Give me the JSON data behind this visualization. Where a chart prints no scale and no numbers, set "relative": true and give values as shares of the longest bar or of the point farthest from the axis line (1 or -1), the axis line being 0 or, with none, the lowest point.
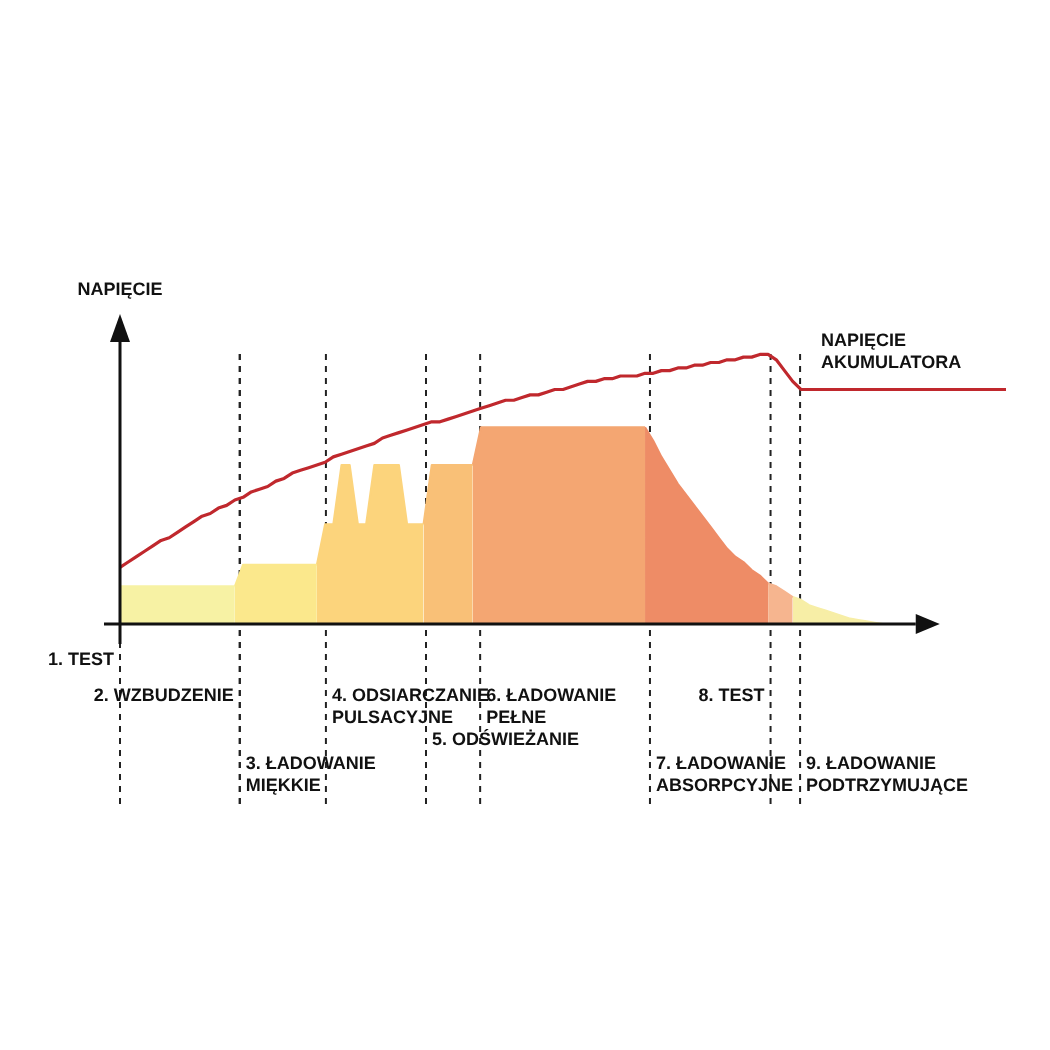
{
  "chart_data": {
    "type": "area",
    "ylabel": "NAPIĘCIE",
    "relative": true,
    "tick_labels": false,
    "marker": "none",
    "categories": [
      null,
      null,
      null,
      null,
      null,
      null,
      null,
      null,
      null,
      null,
      null,
      null,
      null,
      null,
      null,
      null,
      null,
      null,
      null,
      null,
      null,
      null,
      null,
      null,
      null,
      null,
      null,
      null,
      null,
      null,
      null,
      null,
      null,
      null,
      null,
      null,
      null,
      null,
      null,
      null,
      null,
      null,
      null,
      null,
      null,
      null,
      null,
      null,
      null,
      null,
      null,
      null,
      null,
      null,
      null,
      null,
      null,
      null,
      null,
      null,
      null,
      null,
      null,
      null,
      null,
      null,
      null,
      null,
      null,
      null,
      null,
      null,
      null,
      null,
      null,
      null,
      null,
      null,
      null,
      null,
      null,
      null,
      null,
      null,
      null,
      null,
      null,
      null,
      null,
      null,
      null,
      null,
      null,
      null,
      null,
      null,
      null,
      null,
      null,
      null,
      null,
      null,
      null,
      null,
      null,
      null,
      null,
      null,
      null
    ],
    "series": [
      {
        "color": "#f7f2a4",
        "values": [
          0.14,
          0.14,
          0.14,
          0.14,
          0.14,
          0.14,
          0.14,
          0.14,
          0.14,
          0.14,
          0.14,
          0.14,
          0.14,
          0.14,
          0.14,
          null,
          null,
          null,
          null,
          null,
          null,
          null,
          null,
          null,
          null,
          null,
          null,
          null,
          null,
          null,
          null,
          null,
          null,
          null,
          null,
          null,
          null,
          null,
          null,
          null,
          null,
          null,
          null,
          null,
          null,
          null,
          null,
          null,
          null,
          null,
          null,
          null,
          null,
          null,
          null,
          null,
          null,
          null,
          null,
          null,
          null,
          null,
          null,
          null,
          null,
          null,
          null,
          null,
          null,
          null,
          null,
          null,
          null,
          null,
          null,
          null,
          null,
          null,
          null,
          null,
          null,
          null,
          null,
          null,
          null,
          null,
          null,
          null,
          null,
          null,
          null,
          null,
          null,
          null,
          null,
          null,
          null,
          null,
          null,
          null,
          null,
          null,
          null,
          null,
          null,
          null,
          null,
          null,
          null
        ]
      },
      {
        "color": "#fbe88c",
        "values": [
          null,
          null,
          null,
          null,
          null,
          null,
          null,
          null,
          null,
          null,
          null,
          null,
          null,
          null,
          0.14,
          0.22,
          0.22,
          0.22,
          0.22,
          0.22,
          0.22,
          0.22,
          0.22,
          0.22,
          0.22,
          null,
          null,
          null,
          null,
          null,
          null,
          null,
          null,
          null,
          null,
          null,
          null,
          null,
          null,
          null,
          null,
          null,
          null,
          null,
          null,
          null,
          null,
          null,
          null,
          null,
          null,
          null,
          null,
          null,
          null,
          null,
          null,
          null,
          null,
          null,
          null,
          null,
          null,
          null,
          null,
          null,
          null,
          null,
          null,
          null,
          null,
          null,
          null,
          null,
          null,
          null,
          null,
          null,
          null,
          null,
          null,
          null,
          null,
          null,
          null,
          null,
          null,
          null,
          null,
          null,
          null,
          null,
          null,
          null,
          null,
          null,
          null,
          null,
          null,
          null,
          null,
          null,
          null,
          null,
          null,
          null,
          null,
          null,
          null
        ]
      },
      {
        "color": "#fcd47c",
        "values": [
          null,
          null,
          null,
          null,
          null,
          null,
          null,
          null,
          null,
          null,
          null,
          null,
          null,
          null,
          null,
          null,
          null,
          null,
          null,
          null,
          null,
          null,
          null,
          null,
          0.22,
          0.37,
          0.37,
          0.59,
          0.59,
          0.37,
          0.37,
          0.59,
          0.59,
          0.59,
          0.59,
          0.37,
          0.37,
          0.37,
          null,
          null,
          null,
          null,
          null,
          null,
          null,
          null,
          null,
          null,
          null,
          null,
          null,
          null,
          null,
          null,
          null,
          null,
          null,
          null,
          null,
          null,
          null,
          null,
          null,
          null,
          null,
          null,
          null,
          null,
          null,
          null,
          null,
          null,
          null,
          null,
          null,
          null,
          null,
          null,
          null,
          null,
          null,
          null,
          null,
          null,
          null,
          null,
          null,
          null,
          null,
          null,
          null,
          null,
          null,
          null,
          null,
          null,
          null,
          null,
          null,
          null,
          null,
          null,
          null,
          null,
          null,
          null,
          null,
          null,
          null
        ]
      },
      {
        "color": "#f9c077",
        "values": [
          null,
          null,
          null,
          null,
          null,
          null,
          null,
          null,
          null,
          null,
          null,
          null,
          null,
          null,
          null,
          null,
          null,
          null,
          null,
          null,
          null,
          null,
          null,
          null,
          null,
          null,
          null,
          null,
          null,
          null,
          null,
          null,
          null,
          null,
          null,
          null,
          null,
          0.37,
          0.59,
          0.59,
          0.59,
          0.59,
          0.59,
          0.59,
          null,
          null,
          null,
          null,
          null,
          null,
          null,
          null,
          null,
          null,
          null,
          null,
          null,
          null,
          null,
          null,
          null,
          null,
          null,
          null,
          null,
          null,
          null,
          null,
          null,
          null,
          null,
          null,
          null,
          null,
          null,
          null,
          null,
          null,
          null,
          null,
          null,
          null,
          null,
          null,
          null,
          null,
          null,
          null,
          null,
          null,
          null,
          null,
          null,
          null,
          null,
          null,
          null,
          null,
          null,
          null,
          null,
          null,
          null,
          null,
          null,
          null,
          null,
          null,
          null
        ]
      },
      {
        "color": "#f4a672",
        "values": [
          null,
          null,
          null,
          null,
          null,
          null,
          null,
          null,
          null,
          null,
          null,
          null,
          null,
          null,
          null,
          null,
          null,
          null,
          null,
          null,
          null,
          null,
          null,
          null,
          null,
          null,
          null,
          null,
          null,
          null,
          null,
          null,
          null,
          null,
          null,
          null,
          null,
          null,
          null,
          null,
          null,
          null,
          null,
          0.59,
          0.73,
          0.73,
          0.73,
          0.73,
          0.73,
          0.73,
          0.73,
          0.73,
          0.73,
          0.73,
          0.73,
          0.73,
          0.73,
          0.73,
          0.73,
          0.73,
          0.73,
          0.73,
          0.73,
          0.73,
          0.73,
          null,
          null,
          null,
          null,
          null,
          null,
          null,
          null,
          null,
          null,
          null,
          null,
          null,
          null,
          null,
          null,
          null,
          null,
          null,
          null,
          null,
          null,
          null,
          null,
          null,
          null,
          null,
          null,
          null,
          null,
          null,
          null,
          null,
          null,
          null,
          null,
          null,
          null,
          null,
          null,
          null,
          null,
          null,
          null
        ]
      },
      {
        "color": "#ee8c66",
        "values": [
          null,
          null,
          null,
          null,
          null,
          null,
          null,
          null,
          null,
          null,
          null,
          null,
          null,
          null,
          null,
          null,
          null,
          null,
          null,
          null,
          null,
          null,
          null,
          null,
          null,
          null,
          null,
          null,
          null,
          null,
          null,
          null,
          null,
          null,
          null,
          null,
          null,
          null,
          null,
          null,
          null,
          null,
          null,
          null,
          null,
          null,
          null,
          null,
          null,
          null,
          null,
          null,
          null,
          null,
          null,
          null,
          null,
          null,
          null,
          null,
          null,
          null,
          null,
          null,
          0.73,
          0.68,
          0.62,
          0.57,
          0.52,
          0.48,
          0.44,
          0.4,
          0.36,
          0.32,
          0.28,
          0.25,
          0.23,
          0.2,
          0.18,
          0.15,
          null,
          null,
          null,
          null,
          null,
          null,
          null,
          null,
          null,
          null,
          null,
          null,
          null,
          null,
          null,
          null,
          null,
          null,
          null,
          null,
          null,
          null,
          null,
          null,
          null,
          null,
          null,
          null,
          null
        ]
      },
      {
        "color": "#f6b58f",
        "values": [
          null,
          null,
          null,
          null,
          null,
          null,
          null,
          null,
          null,
          null,
          null,
          null,
          null,
          null,
          null,
          null,
          null,
          null,
          null,
          null,
          null,
          null,
          null,
          null,
          null,
          null,
          null,
          null,
          null,
          null,
          null,
          null,
          null,
          null,
          null,
          null,
          null,
          null,
          null,
          null,
          null,
          null,
          null,
          null,
          null,
          null,
          null,
          null,
          null,
          null,
          null,
          null,
          null,
          null,
          null,
          null,
          null,
          null,
          null,
          null,
          null,
          null,
          null,
          null,
          null,
          null,
          null,
          null,
          null,
          null,
          null,
          null,
          null,
          null,
          null,
          null,
          null,
          null,
          null,
          0.15,
          0.14,
          0.12,
          0.1,
          null,
          null,
          null,
          null,
          null,
          null,
          null,
          null,
          null,
          null,
          null,
          null,
          null,
          null,
          null,
          null,
          null,
          null,
          null,
          null,
          null,
          null,
          null,
          null,
          null,
          null
        ]
      },
      {
        "color": "#f7eea6",
        "values": [
          null,
          null,
          null,
          null,
          null,
          null,
          null,
          null,
          null,
          null,
          null,
          null,
          null,
          null,
          null,
          null,
          null,
          null,
          null,
          null,
          null,
          null,
          null,
          null,
          null,
          null,
          null,
          null,
          null,
          null,
          null,
          null,
          null,
          null,
          null,
          null,
          null,
          null,
          null,
          null,
          null,
          null,
          null,
          null,
          null,
          null,
          null,
          null,
          null,
          null,
          null,
          null,
          null,
          null,
          null,
          null,
          null,
          null,
          null,
          null,
          null,
          null,
          null,
          null,
          null,
          null,
          null,
          null,
          null,
          null,
          null,
          null,
          null,
          null,
          null,
          null,
          null,
          null,
          null,
          null,
          null,
          null,
          0.1,
          0.09,
          0.07,
          0.06,
          0.05,
          0.04,
          0.03,
          0.02,
          0.015,
          0.01,
          0.005,
          0,
          null,
          null,
          null,
          null,
          null,
          null,
          null,
          null,
          null,
          null,
          null,
          null,
          null,
          null,
          null
        ]
      },
      {
        "type": "line",
        "name": "NAPIĘCIE AKUMULATORA",
        "color": "#c0282d",
        "values": [
          0.21,
          0.23,
          0.25,
          0.27,
          0.29,
          0.31,
          0.32,
          0.34,
          0.36,
          0.38,
          0.4,
          0.41,
          0.43,
          0.44,
          0.46,
          0.47,
          0.49,
          0.5,
          0.51,
          0.53,
          0.54,
          0.56,
          0.57,
          0.58,
          0.59,
          0.6,
          0.62,
          0.63,
          0.64,
          0.65,
          0.66,
          0.67,
          0.69,
          0.7,
          0.71,
          0.72,
          0.73,
          0.74,
          0.75,
          0.75,
          0.76,
          0.77,
          0.78,
          0.79,
          0.8,
          0.81,
          0.82,
          0.83,
          0.83,
          0.84,
          0.85,
          0.85,
          0.86,
          0.87,
          0.87,
          0.88,
          0.89,
          0.9,
          0.9,
          0.91,
          0.91,
          0.92,
          0.92,
          0.92,
          0.93,
          0.93,
          0.94,
          0.94,
          0.95,
          0.95,
          0.96,
          0.96,
          0.97,
          0.97,
          0.98,
          0.98,
          0.99,
          0.99,
          1,
          1,
          0.98,
          0.94,
          0.9,
          0.87,
          0.87,
          0.87,
          0.87,
          0.87,
          0.87,
          0.87,
          0.87,
          0.87,
          0.87,
          0.87,
          0.87,
          0.87,
          0.87,
          0.87,
          0.87,
          0.87,
          0.87,
          0.87,
          0.87,
          0.87,
          0.87,
          0.87,
          0.87,
          0.87,
          0.87
        ]
      }
    ],
    "annotations": [
      "1. TEST",
      "2. WZBUDZENIE",
      "3. ŁADOWANIE MIĘKKIE",
      "4. ODSIARCZANIE PULSACYJNE",
      "5. ODŚWIEŻANIE",
      "6. ŁADOWANIE PEŁNE",
      "7. ŁADOWANIE ABSORPCYJNE",
      "8. TEST",
      "9. ŁADOWANIE PODTRZYMUJĄCE"
    ]
  }
}
